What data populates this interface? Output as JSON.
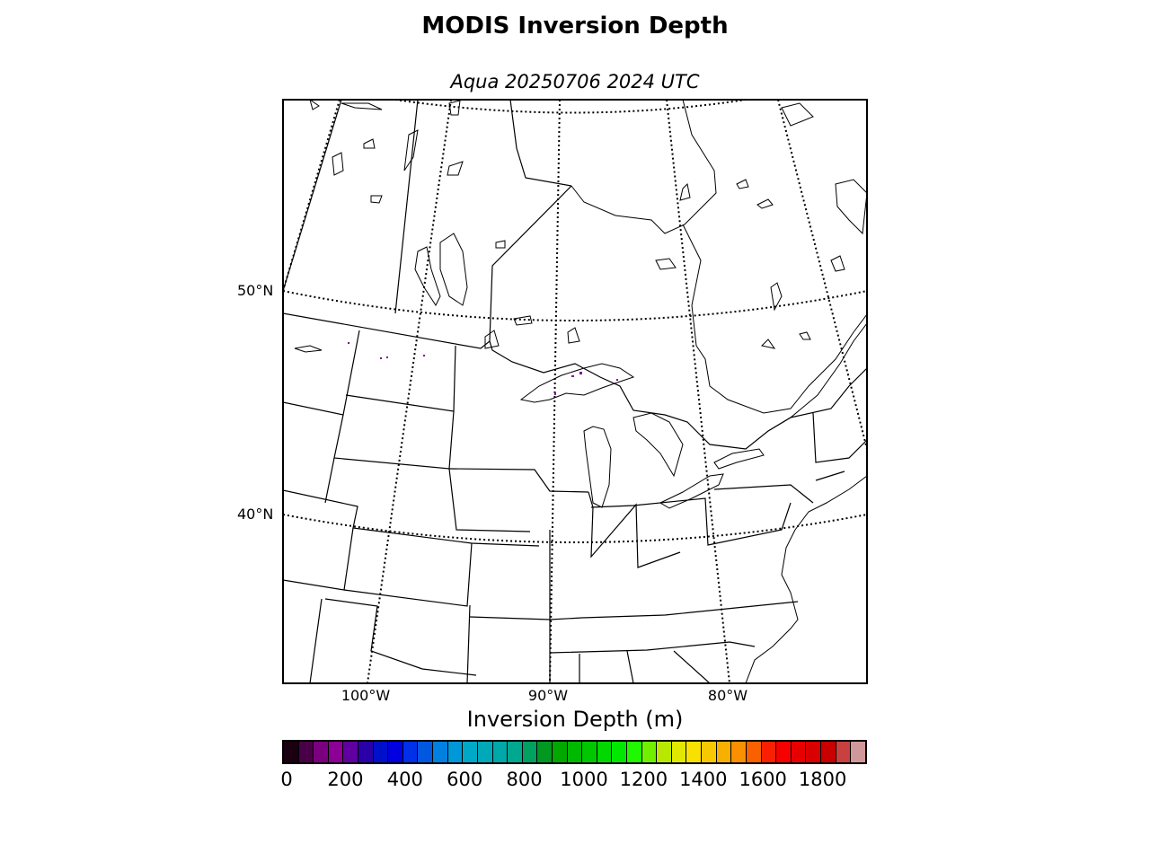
{
  "title": "MODIS Inversion Depth",
  "subtitle": "Aqua 20250706 2024 UTC",
  "map": {
    "lat_labels": [
      "50°N",
      "40°N"
    ],
    "lon_labels": [
      "100°W",
      "90°W",
      "80°W"
    ],
    "features": [
      "coastlines",
      "country borders",
      "state/province borders",
      "Great Lakes"
    ],
    "graticule": "dotted"
  },
  "colorbar": {
    "title": "Inversion Depth (m)",
    "tick_labels": [
      "0",
      "200",
      "400",
      "600",
      "800",
      "1000",
      "1200",
      "1400",
      "1600",
      "1800"
    ],
    "colors": [
      "#1a0010",
      "#4a0046",
      "#7a0080",
      "#8c0096",
      "#6000a0",
      "#2a00a8",
      "#0010c8",
      "#0000e0",
      "#0030e8",
      "#0058e0",
      "#0080e0",
      "#0098d8",
      "#00a8c8",
      "#00a8b8",
      "#00a8a8",
      "#00a890",
      "#00a060",
      "#009820",
      "#00a800",
      "#00b800",
      "#00c800",
      "#00d800",
      "#00e800",
      "#20f800",
      "#70f000",
      "#b8e800",
      "#e0e800",
      "#f8e000",
      "#f8c800",
      "#f8b000",
      "#f89000",
      "#f86000",
      "#f82000",
      "#f80000",
      "#e80000",
      "#d80000",
      "#c80000",
      "#c84040",
      "#d09898"
    ]
  },
  "data_points": {
    "description_values": "sparse purple pixels (~100-200 m) near Lake Superior and North Dakota",
    "color": "#8000a0"
  }
}
